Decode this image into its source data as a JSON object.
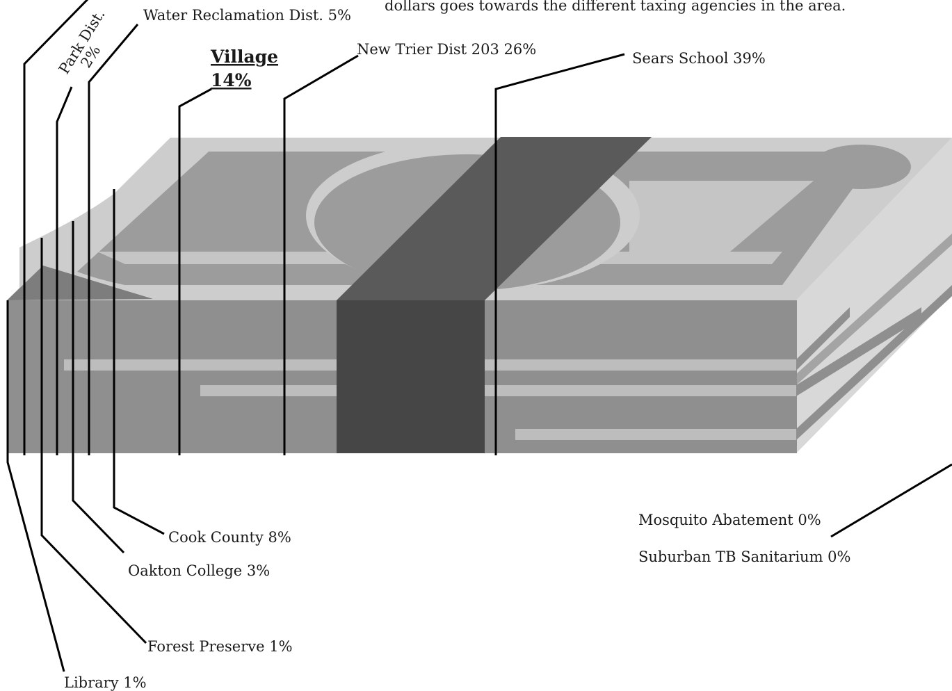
{
  "intro_text": "dollars goes towards the different taxing agencies in the area.",
  "colors": {
    "top_light": "#cdcdcd",
    "top_mid": "#9c9c9c",
    "front": "#8f8f8f",
    "side": "#d8d8d8",
    "band_top": "#5a5a5a",
    "band_front": "#464646",
    "stripe": "#bdbdbd"
  },
  "agencies": [
    {
      "id": "water",
      "label": "Water Reclamation Dist. 5%"
    },
    {
      "id": "park",
      "line1": "Park Dist.",
      "line2": "2%"
    },
    {
      "id": "village",
      "line1": "Village",
      "line2": "14%"
    },
    {
      "id": "newtrier",
      "label": "New Trier  Dist 203  26%"
    },
    {
      "id": "sears",
      "label": "Sears School 39%"
    },
    {
      "id": "cook",
      "label": "Cook County  8%"
    },
    {
      "id": "oakton",
      "label": "Oakton College   3%"
    },
    {
      "id": "forest",
      "label": "Forest Preserve 1%"
    },
    {
      "id": "library",
      "label": "Library   1%"
    },
    {
      "id": "mosquito",
      "label": "Mosquito Abatement  0%"
    },
    {
      "id": "tb",
      "label": "Suburban TB Sanitarium 0%"
    }
  ]
}
